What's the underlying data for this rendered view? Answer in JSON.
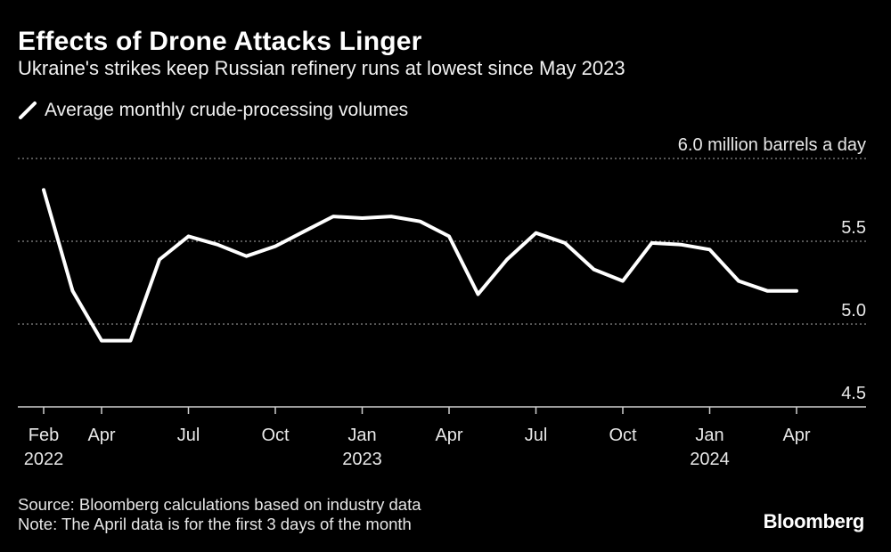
{
  "header": {
    "title": "Effects of Drone Attacks Linger",
    "subtitle": "Ukraine's strikes keep Russian refinery runs at lowest since May 2023"
  },
  "legend": {
    "label": "Average monthly crude-processing volumes",
    "swatch_icon": "diagonal-line-icon"
  },
  "footer": {
    "source": "Source: Bloomberg calculations based on industry data",
    "note": "Note: The April data is for the first 3 days of the month",
    "brand": "Bloomberg"
  },
  "colors": {
    "background": "#000000",
    "line": "#ffffff",
    "grid": "#8a8a8a"
  },
  "chart_data": {
    "type": "line",
    "title": "Effects of Drone Attacks Linger",
    "subtitle": "Ukraine's strikes keep Russian refinery runs at lowest since May 2023",
    "ylabel": "6.0 million barrels a day",
    "y_unit_label": "6.0 million barrels a day",
    "ylim": [
      4.5,
      6.0
    ],
    "yticks": [
      {
        "value": 4.5,
        "label": "4.5"
      },
      {
        "value": 5.0,
        "label": "5.0"
      },
      {
        "value": 5.5,
        "label": "5.5"
      },
      {
        "value": 6.0,
        "label": "6.0 million barrels a day"
      }
    ],
    "grid": true,
    "legend_position": "top-left",
    "xticks": [
      {
        "index": 0,
        "label": "Feb",
        "sublabel": "2022"
      },
      {
        "index": 2,
        "label": "Apr",
        "sublabel": ""
      },
      {
        "index": 5,
        "label": "Jul",
        "sublabel": ""
      },
      {
        "index": 8,
        "label": "Oct",
        "sublabel": ""
      },
      {
        "index": 11,
        "label": "Jan",
        "sublabel": "2023"
      },
      {
        "index": 14,
        "label": "Apr",
        "sublabel": ""
      },
      {
        "index": 17,
        "label": "Jul",
        "sublabel": ""
      },
      {
        "index": 20,
        "label": "Oct",
        "sublabel": ""
      },
      {
        "index": 23,
        "label": "Jan",
        "sublabel": "2024"
      },
      {
        "index": 26,
        "label": "Apr",
        "sublabel": ""
      }
    ],
    "series": [
      {
        "name": "Average monthly crude-processing volumes",
        "x": [
          "2022-02",
          "2022-03",
          "2022-04",
          "2022-05",
          "2022-06",
          "2022-07",
          "2022-08",
          "2022-09",
          "2022-10",
          "2022-11",
          "2022-12",
          "2023-01",
          "2023-02",
          "2023-03",
          "2023-04",
          "2023-05",
          "2023-06",
          "2023-07",
          "2023-08",
          "2023-09",
          "2023-10",
          "2023-11",
          "2023-12",
          "2024-01",
          "2024-02",
          "2024-03",
          "2024-04"
        ],
        "values": [
          5.81,
          5.2,
          4.9,
          4.9,
          5.39,
          5.53,
          5.48,
          5.41,
          5.47,
          5.56,
          5.65,
          5.64,
          5.65,
          5.62,
          5.53,
          5.18,
          5.39,
          5.55,
          5.49,
          5.33,
          5.26,
          5.49,
          5.48,
          5.45,
          5.26,
          5.2,
          5.2
        ]
      }
    ]
  }
}
